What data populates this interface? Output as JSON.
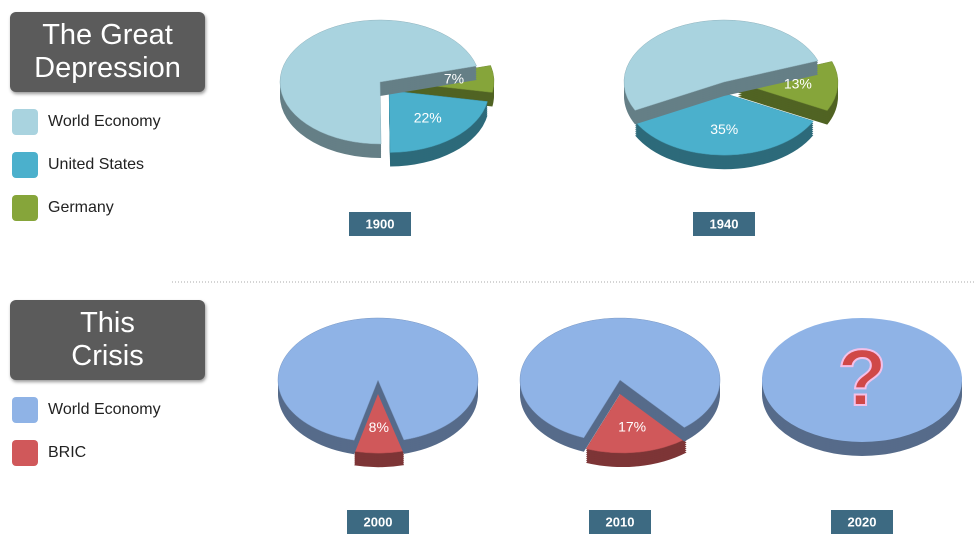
{
  "sections": [
    {
      "heading": "The Great Depression"
    },
    {
      "heading": "This Crisis"
    }
  ],
  "chart_data": [
    {
      "type": "pie",
      "title": "1900",
      "categories": [
        "World Economy",
        "United States",
        "Germany"
      ],
      "values": [
        71,
        22,
        7
      ],
      "value_labels": [
        null,
        "22%",
        "7%"
      ],
      "colors": [
        "#a9d3df",
        "#4bb0cc",
        "#86a53a"
      ]
    },
    {
      "type": "pie",
      "title": "1940",
      "categories": [
        "World Economy",
        "United States",
        "Germany"
      ],
      "values": [
        52,
        35,
        13
      ],
      "value_labels": [
        null,
        "35%",
        "13%"
      ],
      "colors": [
        "#a9d3df",
        "#4bb0cc",
        "#86a53a"
      ]
    },
    {
      "type": "pie",
      "title": "2000",
      "categories": [
        "World Economy",
        "BRIC"
      ],
      "values": [
        92,
        8
      ],
      "value_labels": [
        null,
        "8%"
      ],
      "colors": [
        "#8fb3e6",
        "#d0585a"
      ]
    },
    {
      "type": "pie",
      "title": "2010",
      "categories": [
        "World Economy",
        "BRIC"
      ],
      "values": [
        83,
        17
      ],
      "value_labels": [
        null,
        "17%"
      ],
      "colors": [
        "#8fb3e6",
        "#d0585a"
      ]
    },
    {
      "type": "pie",
      "title": "2020",
      "annotation": "?",
      "color": "#8fb3e6"
    }
  ]
}
